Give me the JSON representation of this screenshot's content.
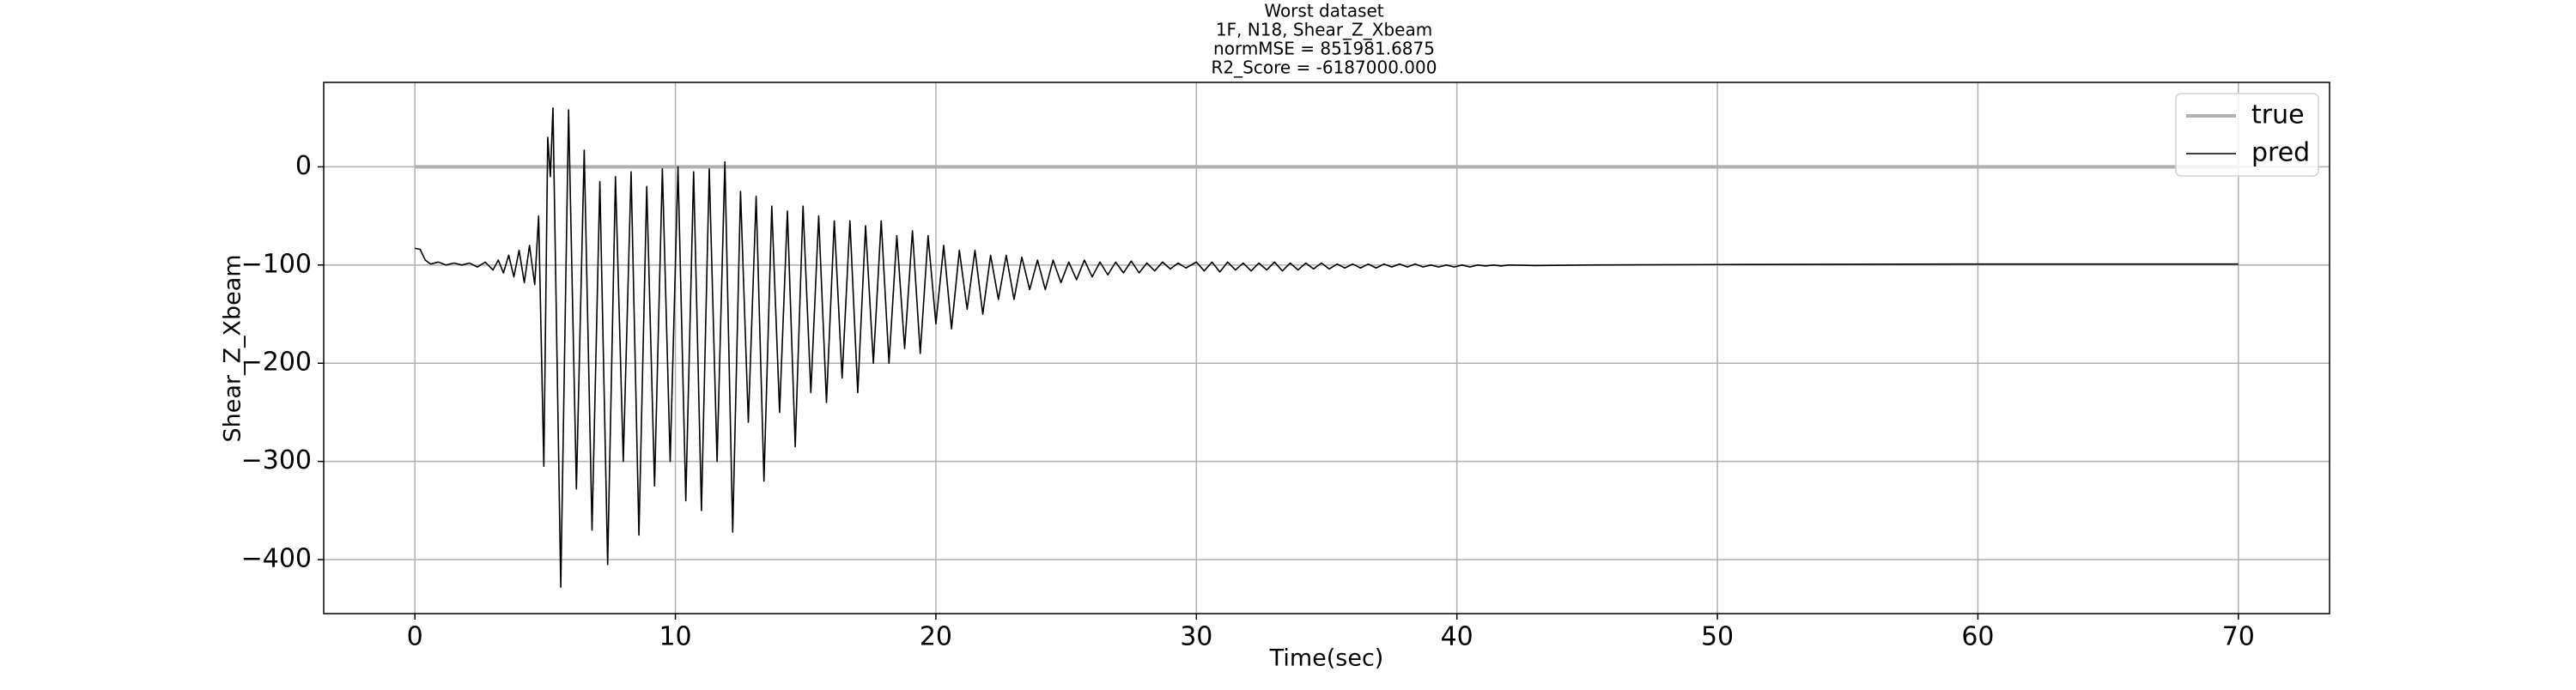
{
  "chart_data": {
    "type": "line",
    "title_lines": [
      "Worst dataset",
      "1F, N18, Shear_Z_Xbeam",
      "normMSE = 851981.6875",
      "R2_Score = -6187000.000"
    ],
    "x_label": "Time(sec)",
    "y_label": "Shear_Z_Xbeam",
    "xlim": [
      -3.5,
      73.5
    ],
    "ylim": [
      -455,
      86
    ],
    "xticks": [
      0,
      10,
      20,
      30,
      40,
      50,
      60,
      70
    ],
    "yticks": [
      {
        "value": -400,
        "label": "−400"
      },
      {
        "value": -300,
        "label": "−300"
      },
      {
        "value": -200,
        "label": "−200"
      },
      {
        "value": -100,
        "label": "−100"
      },
      0
    ],
    "grid": true,
    "legend": "upper right",
    "series": [
      {
        "name": "true",
        "color": "#b0b0b0",
        "x": [
          0,
          70
        ],
        "values": [
          0,
          0
        ]
      },
      {
        "name": "pred",
        "color": "#000000",
        "x": [
          0,
          0.2,
          0.4,
          0.6,
          0.9,
          1.2,
          1.5,
          1.8,
          2.1,
          2.4,
          2.7,
          3.0,
          3.2,
          3.4,
          3.6,
          3.8,
          4.0,
          4.2,
          4.4,
          4.6,
          4.75,
          4.95,
          5.1,
          5.2,
          5.3,
          5.6,
          5.9,
          6.2,
          6.5,
          6.8,
          7.1,
          7.4,
          7.7,
          8.0,
          8.3,
          8.6,
          8.9,
          9.2,
          9.5,
          9.8,
          10.1,
          10.4,
          10.7,
          11.0,
          11.3,
          11.6,
          11.9,
          12.2,
          12.5,
          12.8,
          13.1,
          13.4,
          13.7,
          14.0,
          14.3,
          14.6,
          14.9,
          15.2,
          15.5,
          15.8,
          16.1,
          16.4,
          16.7,
          17.0,
          17.3,
          17.6,
          17.9,
          18.2,
          18.5,
          18.8,
          19.1,
          19.4,
          19.7,
          20.0,
          20.3,
          20.6,
          20.9,
          21.2,
          21.5,
          21.8,
          22.1,
          22.4,
          22.7,
          23.0,
          23.3,
          23.6,
          23.9,
          24.2,
          24.5,
          24.8,
          25.1,
          25.4,
          25.7,
          26.0,
          26.3,
          26.6,
          26.9,
          27.2,
          27.5,
          27.8,
          28.1,
          28.4,
          28.7,
          29.0,
          29.3,
          29.6,
          30.0,
          30.3,
          30.6,
          30.9,
          31.2,
          31.5,
          31.8,
          32.1,
          32.4,
          32.7,
          33.0,
          33.3,
          33.6,
          33.9,
          34.2,
          34.5,
          34.8,
          35.1,
          35.4,
          35.7,
          36.0,
          36.3,
          36.6,
          36.9,
          37.2,
          37.5,
          37.8,
          38.1,
          38.4,
          38.7,
          39.0,
          39.3,
          39.6,
          39.9,
          40.2,
          40.5,
          40.8,
          41.1,
          41.4,
          41.7,
          42.0,
          43.0,
          45.0,
          50.0,
          60.0,
          70.0
        ],
        "values": [
          -83,
          -84,
          -95,
          -99,
          -97,
          -100,
          -98,
          -100,
          -98,
          -102,
          -97,
          -105,
          -95,
          -108,
          -90,
          -112,
          -85,
          -118,
          -80,
          -120,
          -50,
          -305,
          30,
          -10,
          60,
          -428,
          58,
          -328,
          17,
          -370,
          -15,
          -405,
          -10,
          -300,
          -5,
          -375,
          -20,
          -325,
          -2,
          -300,
          0,
          -340,
          -5,
          -350,
          -2,
          -300,
          5,
          -372,
          -25,
          -260,
          -30,
          -320,
          -40,
          -250,
          -45,
          -285,
          -40,
          -230,
          -50,
          -240,
          -55,
          -215,
          -55,
          -230,
          -60,
          -200,
          -55,
          -200,
          -70,
          -185,
          -65,
          -190,
          -70,
          -160,
          -80,
          -165,
          -85,
          -145,
          -85,
          -150,
          -90,
          -135,
          -90,
          -135,
          -92,
          -125,
          -95,
          -125,
          -95,
          -118,
          -97,
          -115,
          -95,
          -112,
          -97,
          -110,
          -97,
          -108,
          -96,
          -108,
          -98,
          -106,
          -97,
          -104,
          -98,
          -103,
          -97,
          -106,
          -97,
          -107,
          -97,
          -105,
          -98,
          -106,
          -98,
          -105,
          -97,
          -106,
          -98,
          -105,
          -98,
          -104,
          -98,
          -104,
          -99,
          -103,
          -99,
          -103,
          -99,
          -103,
          -99,
          -102,
          -99,
          -102,
          -99,
          -102,
          -100,
          -102,
          -100,
          -102,
          -100,
          -102,
          -100,
          -101,
          -100,
          -101,
          -100,
          -100.5,
          -100,
          -99.5,
          -99,
          -99
        ]
      }
    ]
  }
}
